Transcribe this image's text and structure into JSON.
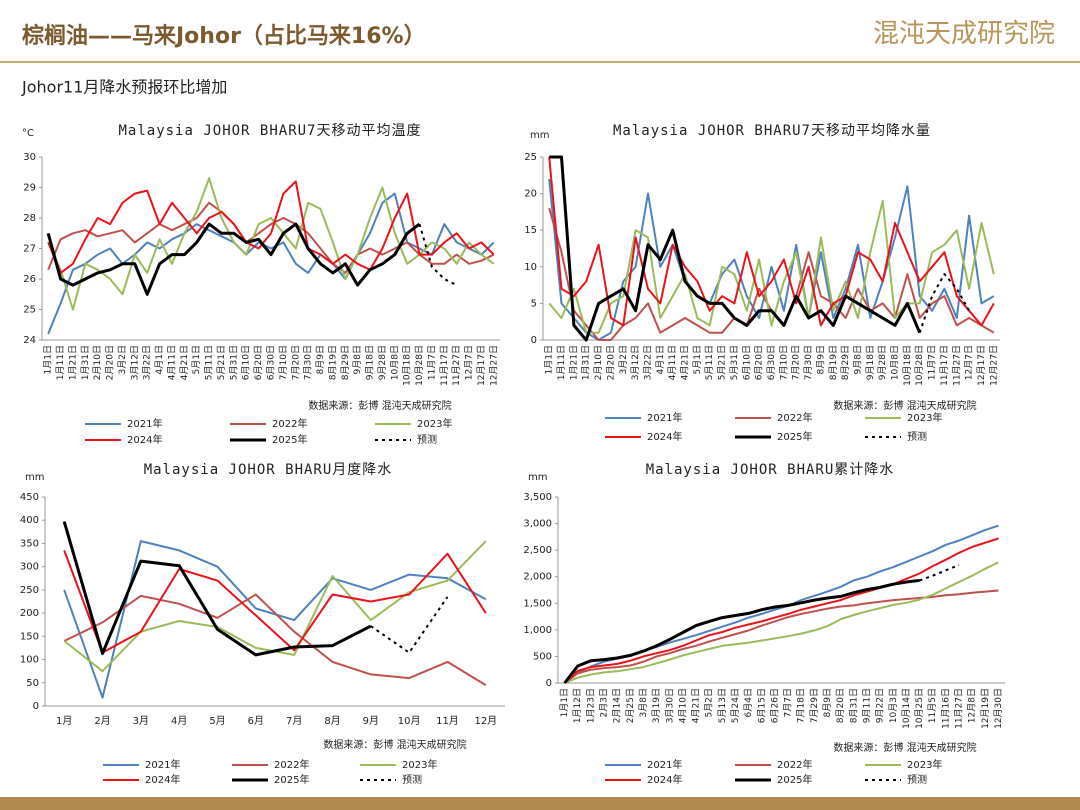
{
  "header": {
    "title": "棕榈油——马来Johor（占比马来16%）",
    "brand": "混沌天成研究院",
    "subtitle": "Johor11月降水预报环比增加"
  },
  "chart_data": [
    {
      "type": "line",
      "title": "Malaysia JOHOR BHARU7天移动平均温度",
      "y_unit": "°C",
      "source": "数据来源：彭博  混沌天成研究院",
      "categories": [
        "1月1日",
        "1月11日",
        "1月21日",
        "1月31日",
        "2月10日",
        "2月20日",
        "3月2日",
        "3月12日",
        "3月22日",
        "4月1日",
        "4月11日",
        "4月21日",
        "5月1日",
        "5月11日",
        "5月21日",
        "5月31日",
        "6月10日",
        "6月20日",
        "6月30日",
        "7月10日",
        "7月20日",
        "7月30日",
        "8月9日",
        "8月19日",
        "8月29日",
        "9月8日",
        "9月18日",
        "9月28日",
        "10月8日",
        "10月18日",
        "10月28日",
        "11月7日",
        "11月17日",
        "11月27日",
        "12月7日",
        "12月17日",
        "12月27日"
      ],
      "ylim": [
        24,
        30
      ],
      "yticks": [
        24,
        25,
        26,
        27,
        28,
        29,
        30
      ],
      "series": [
        {
          "name": "2021年",
          "color": "#4f81bd",
          "values": [
            24.2,
            25.2,
            26.3,
            26.5,
            26.8,
            27.0,
            26.5,
            26.8,
            27.2,
            27.0,
            27.3,
            27.5,
            27.8,
            27.6,
            27.4,
            27.2,
            26.8,
            27.2,
            27.0,
            27.2,
            26.5,
            26.2,
            26.8,
            26.5,
            26.0,
            26.8,
            27.5,
            28.5,
            28.8,
            27.2,
            27.0,
            26.8,
            27.8,
            27.2,
            27.0,
            26.8,
            27.2
          ]
        },
        {
          "name": "2022年",
          "color": "#c0504d",
          "values": [
            26.3,
            27.3,
            27.5,
            27.6,
            27.4,
            27.5,
            27.6,
            27.2,
            27.5,
            27.8,
            27.6,
            27.8,
            28.0,
            28.5,
            28.2,
            27.8,
            27.2,
            27.5,
            27.8,
            28.0,
            27.8,
            27.5,
            27.0,
            26.5,
            26.2,
            26.8,
            27.0,
            26.8,
            27.0,
            27.2,
            26.8,
            26.5,
            26.5,
            26.8,
            26.5,
            26.6,
            26.8
          ]
        },
        {
          "name": "2023年",
          "color": "#9bbb59",
          "values": [
            27.2,
            26.3,
            25.0,
            26.5,
            26.3,
            26.0,
            25.5,
            26.8,
            26.2,
            27.3,
            26.5,
            27.5,
            28.2,
            29.3,
            28.0,
            27.2,
            26.8,
            27.8,
            28.0,
            27.5,
            27.0,
            28.5,
            28.3,
            27.2,
            26.0,
            26.8,
            28.0,
            29.0,
            27.5,
            26.5,
            26.8,
            27.2,
            27.0,
            26.5,
            27.2,
            26.8,
            26.5
          ]
        },
        {
          "name": "2024年",
          "color": "#e8141b",
          "values": [
            27.2,
            26.2,
            26.5,
            27.3,
            28.0,
            27.8,
            28.5,
            28.8,
            28.9,
            27.8,
            28.5,
            28.0,
            27.5,
            28.0,
            28.2,
            27.8,
            27.2,
            27.0,
            27.5,
            28.8,
            29.2,
            27.0,
            26.8,
            26.5,
            26.8,
            26.5,
            26.3,
            27.0,
            28.0,
            28.8,
            26.8,
            26.8,
            27.2,
            27.5,
            27.0,
            27.2,
            26.8
          ]
        },
        {
          "name": "2025年",
          "color": "#000000",
          "width": 3,
          "values": [
            27.5,
            26.0,
            25.8,
            26.0,
            26.2,
            26.3,
            26.5,
            26.5,
            25.5,
            26.5,
            26.8,
            26.8,
            27.2,
            27.8,
            27.5,
            27.5,
            27.2,
            27.3,
            26.8,
            27.5,
            27.8,
            27.0,
            26.5,
            26.2,
            26.5,
            25.8,
            26.3,
            26.5,
            26.8,
            27.5,
            27.8,
            null,
            null,
            null,
            null,
            null,
            null
          ]
        },
        {
          "name": "预测",
          "color": "#000000",
          "style": "dotted",
          "values": [
            null,
            null,
            null,
            null,
            null,
            null,
            null,
            null,
            null,
            null,
            null,
            null,
            null,
            null,
            null,
            null,
            null,
            null,
            null,
            null,
            null,
            null,
            null,
            null,
            null,
            null,
            null,
            null,
            null,
            null,
            27.8,
            26.4,
            26.0,
            25.8,
            null,
            null,
            null
          ]
        }
      ]
    },
    {
      "type": "line",
      "title": "Malaysia JOHOR BHARU7天移动平均降水量",
      "y_unit": "mm",
      "source": "数据来源：彭博  混沌天成研究院",
      "categories": [
        "1月1日",
        "1月11日",
        "1月21日",
        "1月31日",
        "2月10日",
        "2月20日",
        "3月2日",
        "3月12日",
        "3月22日",
        "4月1日",
        "4月11日",
        "4月21日",
        "5月1日",
        "5月11日",
        "5月21日",
        "5月31日",
        "6月10日",
        "6月20日",
        "6月30日",
        "7月10日",
        "7月20日",
        "7月30日",
        "8月9日",
        "8月19日",
        "8月29日",
        "9月8日",
        "9月18日",
        "9月28日",
        "10月8日",
        "10月18日",
        "10月28日",
        "11月7日",
        "11月17日",
        "11月27日",
        "12月7日",
        "12月17日",
        "12月27日"
      ],
      "ylim": [
        0,
        25
      ],
      "yticks": [
        0,
        5,
        10,
        15,
        20,
        25
      ],
      "series": [
        {
          "name": "2021年",
          "color": "#4f81bd",
          "values": [
            22,
            5,
            3,
            1,
            0,
            1,
            8,
            10,
            20,
            10,
            13,
            8,
            6,
            5,
            9,
            11,
            6,
            3,
            10,
            4,
            13,
            3,
            12,
            3,
            7,
            13,
            3,
            8,
            14,
            21,
            6,
            4,
            7,
            3,
            17,
            5,
            6
          ]
        },
        {
          "name": "2022年",
          "color": "#c0504d",
          "values": [
            18,
            12,
            4,
            2,
            0,
            0,
            2,
            3,
            5,
            1,
            2,
            3,
            2,
            1,
            1,
            3,
            2,
            7,
            4,
            2,
            6,
            12,
            6,
            5,
            3,
            7,
            4,
            5,
            3,
            9,
            3,
            5,
            6,
            2,
            3,
            2,
            1
          ]
        },
        {
          "name": "2023年",
          "color": "#9bbb59",
          "values": [
            5,
            3,
            7,
            1,
            1,
            5,
            6,
            15,
            14,
            3,
            6,
            9,
            3,
            2,
            10,
            9,
            4,
            11,
            2,
            8,
            12,
            3,
            14,
            4,
            8,
            3,
            12,
            19,
            3,
            5,
            5,
            12,
            13,
            15,
            7,
            16,
            9
          ]
        },
        {
          "name": "2024年",
          "color": "#e8141b",
          "values": [
            25,
            7,
            6,
            8,
            13,
            3,
            2,
            14,
            7,
            5,
            13,
            10,
            8,
            4,
            6,
            5,
            12,
            6,
            8,
            11,
            5,
            10,
            2,
            5,
            6,
            12,
            11,
            8,
            16,
            12,
            8,
            10,
            12,
            6,
            4,
            2,
            5
          ]
        },
        {
          "name": "2025年",
          "color": "#000000",
          "width": 3,
          "values": [
            25,
            25,
            2,
            0,
            5,
            6,
            7,
            4,
            13,
            11,
            15,
            8,
            6,
            5,
            5,
            3,
            2,
            4,
            4,
            2,
            6,
            3,
            4,
            2,
            6,
            5,
            4,
            3,
            2,
            5,
            1,
            null,
            null,
            null,
            null,
            null,
            null
          ]
        },
        {
          "name": "预测",
          "color": "#000000",
          "style": "dotted",
          "values": [
            null,
            null,
            null,
            null,
            null,
            null,
            null,
            null,
            null,
            null,
            null,
            null,
            null,
            null,
            null,
            null,
            null,
            null,
            null,
            null,
            null,
            null,
            null,
            null,
            null,
            null,
            null,
            null,
            null,
            null,
            1,
            6,
            9,
            7,
            4,
            null,
            null
          ]
        }
      ]
    },
    {
      "type": "line",
      "title": "Malaysia JOHOR BHARU月度降水",
      "y_unit": "mm",
      "source": "数据来源：彭博  混沌天成研究院",
      "categories": [
        "1月",
        "2月",
        "3月",
        "4月",
        "5月",
        "6月",
        "7月",
        "8月",
        "9月",
        "10月",
        "11月",
        "12月"
      ],
      "ylim": [
        0,
        450
      ],
      "yticks": [
        0,
        50,
        100,
        150,
        200,
        250,
        300,
        350,
        400,
        450
      ],
      "series": [
        {
          "name": "2021年",
          "color": "#4f81bd",
          "values": [
            250,
            18,
            355,
            335,
            300,
            210,
            185,
            275,
            250,
            283,
            275,
            230
          ]
        },
        {
          "name": "2022年",
          "color": "#c0504d",
          "values": [
            140,
            180,
            237,
            220,
            190,
            240,
            160,
            95,
            68,
            60,
            95,
            45
          ]
        },
        {
          "name": "2023年",
          "color": "#9bbb59",
          "values": [
            140,
            75,
            160,
            183,
            170,
            125,
            110,
            280,
            185,
            245,
            270,
            355
          ]
        },
        {
          "name": "2024年",
          "color": "#e8141b",
          "values": [
            335,
            115,
            160,
            295,
            270,
            195,
            120,
            240,
            225,
            240,
            328,
            200
          ]
        },
        {
          "name": "2025年",
          "color": "#000000",
          "width": 3,
          "values": [
            397,
            113,
            312,
            302,
            165,
            110,
            127,
            130,
            172,
            null,
            null,
            null
          ]
        },
        {
          "name": "预测",
          "color": "#000000",
          "style": "dotted",
          "values": [
            null,
            null,
            null,
            null,
            null,
            null,
            null,
            null,
            172,
            115,
            235,
            null
          ]
        }
      ]
    },
    {
      "type": "line",
      "title": "Malaysia JOHOR BHARU累计降水",
      "y_unit": "mm",
      "source": "数据来源：彭博  混沌天成研究院",
      "categories": [
        "1月1日",
        "1月12日",
        "1月23日",
        "2月3日",
        "2月14日",
        "2月25日",
        "3月8日",
        "3月19日",
        "3月30日",
        "4月10日",
        "4月21日",
        "5月2日",
        "5月13日",
        "5月24日",
        "6月4日",
        "6月15日",
        "6月26日",
        "7月7日",
        "7月18日",
        "7月29日",
        "8月9日",
        "8月20日",
        "8月31日",
        "9月11日",
        "9月22日",
        "10月3日",
        "10月14日",
        "10月25日",
        "11月5日",
        "11月16日",
        "11月27日",
        "12月8日",
        "12月19日",
        "12月30日"
      ],
      "ylim": [
        0,
        3500
      ],
      "yticks": [
        0,
        500,
        {
          "value": 1000,
          "label": "1,000"
        },
        {
          "value": 1500,
          "label": "1,500"
        },
        {
          "value": 2000,
          "label": "2,000"
        },
        {
          "value": 2500,
          "label": "2,500"
        },
        {
          "value": 3000,
          "label": "3,000"
        },
        {
          "value": 3500,
          "label": "3,500"
        }
      ],
      "series": [
        {
          "name": "2021年",
          "color": "#4f81bd",
          "values": [
            0,
            200,
            310,
            400,
            460,
            520,
            600,
            680,
            760,
            830,
            900,
            980,
            1060,
            1140,
            1230,
            1300,
            1380,
            1450,
            1560,
            1640,
            1720,
            1810,
            1930,
            2000,
            2100,
            2180,
            2280,
            2380,
            2480,
            2600,
            2680,
            2780,
            2880,
            2960
          ]
        },
        {
          "name": "2022年",
          "color": "#c0504d",
          "values": [
            0,
            180,
            250,
            280,
            300,
            330,
            400,
            500,
            560,
            640,
            700,
            780,
            850,
            920,
            990,
            1080,
            1160,
            1240,
            1300,
            1350,
            1400,
            1440,
            1460,
            1500,
            1530,
            1560,
            1580,
            1600,
            1620,
            1650,
            1670,
            1700,
            1720,
            1740
          ]
        },
        {
          "name": "2023年",
          "color": "#9bbb59",
          "values": [
            0,
            100,
            160,
            200,
            220,
            260,
            300,
            370,
            440,
            520,
            580,
            640,
            700,
            730,
            760,
            800,
            840,
            880,
            930,
            990,
            1070,
            1200,
            1280,
            1350,
            1410,
            1470,
            1510,
            1570,
            1660,
            1780,
            1900,
            2020,
            2150,
            2270
          ]
        },
        {
          "name": "2024年",
          "color": "#e8141b",
          "values": [
            0,
            230,
            300,
            330,
            360,
            420,
            500,
            560,
            620,
            700,
            800,
            900,
            960,
            1040,
            1100,
            1160,
            1230,
            1300,
            1380,
            1440,
            1500,
            1560,
            1650,
            1720,
            1790,
            1860,
            1960,
            2060,
            2200,
            2320,
            2450,
            2560,
            2640,
            2720
          ]
        },
        {
          "name": "2025年",
          "color": "#000000",
          "width": 3,
          "values": [
            0,
            320,
            420,
            440,
            470,
            520,
            600,
            700,
            820,
            950,
            1080,
            1160,
            1230,
            1270,
            1310,
            1380,
            1430,
            1460,
            1510,
            1560,
            1600,
            1630,
            1700,
            1760,
            1800,
            1860,
            1900,
            1930,
            null,
            null,
            null,
            null,
            null,
            null
          ]
        },
        {
          "name": "预测",
          "color": "#000000",
          "style": "dotted",
          "values": [
            null,
            null,
            null,
            null,
            null,
            null,
            null,
            null,
            null,
            null,
            null,
            null,
            null,
            null,
            null,
            null,
            null,
            null,
            null,
            null,
            null,
            null,
            null,
            null,
            null,
            null,
            null,
            1930,
            2020,
            2120,
            2220,
            null,
            null,
            null
          ]
        }
      ]
    }
  ]
}
